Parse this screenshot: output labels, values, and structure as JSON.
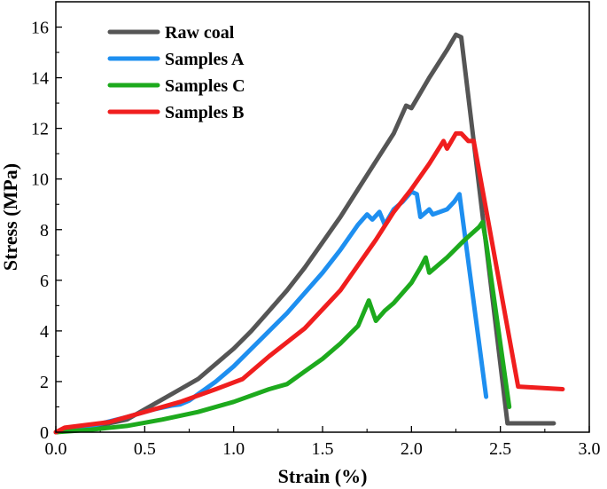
{
  "chart_data": {
    "type": "line",
    "title": "",
    "xlabel": "Strain (%)",
    "ylabel": "Stress (MPa)",
    "xlim": [
      0,
      3.0
    ],
    "ylim": [
      0,
      17
    ],
    "xticks": [
      "0.0",
      "0.5",
      "1.0",
      "1.5",
      "2.0",
      "2.5",
      "3.0"
    ],
    "yticks": [
      "0",
      "2",
      "4",
      "6",
      "8",
      "10",
      "12",
      "14",
      "16"
    ],
    "legend_position": "top-left",
    "series": [
      {
        "name": "Raw coal",
        "color": "#555555",
        "points": [
          [
            0,
            0
          ],
          [
            0.2,
            0.2
          ],
          [
            0.4,
            0.5
          ],
          [
            0.5,
            0.9
          ],
          [
            0.6,
            1.3
          ],
          [
            0.7,
            1.7
          ],
          [
            0.8,
            2.1
          ],
          [
            0.9,
            2.7
          ],
          [
            1.0,
            3.3
          ],
          [
            1.1,
            4.0
          ],
          [
            1.2,
            4.8
          ],
          [
            1.3,
            5.6
          ],
          [
            1.4,
            6.5
          ],
          [
            1.5,
            7.5
          ],
          [
            1.6,
            8.5
          ],
          [
            1.7,
            9.6
          ],
          [
            1.8,
            10.7
          ],
          [
            1.9,
            11.8
          ],
          [
            1.97,
            12.9
          ],
          [
            2.0,
            12.8
          ],
          [
            2.1,
            14.0
          ],
          [
            2.2,
            15.1
          ],
          [
            2.25,
            15.7
          ],
          [
            2.28,
            15.6
          ],
          [
            2.54,
            0.35
          ],
          [
            2.8,
            0.35
          ]
        ]
      },
      {
        "name": "Samples A",
        "color": "#1E8FF0",
        "points": [
          [
            0,
            0
          ],
          [
            0.2,
            0.25
          ],
          [
            0.4,
            0.6
          ],
          [
            0.55,
            0.9
          ],
          [
            0.65,
            1.05
          ],
          [
            0.7,
            1.1
          ],
          [
            0.75,
            1.25
          ],
          [
            0.9,
            2.0
          ],
          [
            1.0,
            2.6
          ],
          [
            1.1,
            3.3
          ],
          [
            1.2,
            4.0
          ],
          [
            1.3,
            4.7
          ],
          [
            1.4,
            5.5
          ],
          [
            1.5,
            6.3
          ],
          [
            1.6,
            7.2
          ],
          [
            1.7,
            8.2
          ],
          [
            1.75,
            8.6
          ],
          [
            1.78,
            8.4
          ],
          [
            1.82,
            8.7
          ],
          [
            1.85,
            8.2
          ],
          [
            1.9,
            8.8
          ],
          [
            1.95,
            9.1
          ],
          [
            2.0,
            9.5
          ],
          [
            2.03,
            9.4
          ],
          [
            2.05,
            8.5
          ],
          [
            2.1,
            8.8
          ],
          [
            2.12,
            8.6
          ],
          [
            2.2,
            8.8
          ],
          [
            2.24,
            9.1
          ],
          [
            2.27,
            9.4
          ],
          [
            2.42,
            1.4
          ]
        ]
      },
      {
        "name": "Samples C",
        "color": "#1DAA1D",
        "points": [
          [
            0,
            0
          ],
          [
            0.2,
            0.1
          ],
          [
            0.4,
            0.25
          ],
          [
            0.6,
            0.5
          ],
          [
            0.8,
            0.8
          ],
          [
            1.0,
            1.2
          ],
          [
            1.2,
            1.7
          ],
          [
            1.3,
            1.9
          ],
          [
            1.4,
            2.4
          ],
          [
            1.5,
            2.9
          ],
          [
            1.6,
            3.5
          ],
          [
            1.7,
            4.2
          ],
          [
            1.76,
            5.2
          ],
          [
            1.8,
            4.4
          ],
          [
            1.85,
            4.8
          ],
          [
            1.9,
            5.1
          ],
          [
            2.0,
            5.9
          ],
          [
            2.05,
            6.5
          ],
          [
            2.08,
            6.9
          ],
          [
            2.1,
            6.3
          ],
          [
            2.2,
            6.9
          ],
          [
            2.3,
            7.6
          ],
          [
            2.38,
            8.1
          ],
          [
            2.4,
            8.3
          ],
          [
            2.42,
            7.5
          ],
          [
            2.55,
            1.0
          ]
        ]
      },
      {
        "name": "Samples B",
        "color": "#F01E1E",
        "points": [
          [
            0,
            0
          ],
          [
            0.05,
            0.18
          ],
          [
            0.3,
            0.4
          ],
          [
            0.5,
            0.8
          ],
          [
            0.7,
            1.2
          ],
          [
            0.9,
            1.7
          ],
          [
            1.05,
            2.1
          ],
          [
            1.2,
            3.0
          ],
          [
            1.4,
            4.1
          ],
          [
            1.6,
            5.6
          ],
          [
            1.8,
            7.6
          ],
          [
            1.9,
            8.7
          ],
          [
            2.0,
            9.6
          ],
          [
            2.1,
            10.6
          ],
          [
            2.18,
            11.5
          ],
          [
            2.2,
            11.2
          ],
          [
            2.25,
            11.8
          ],
          [
            2.28,
            11.8
          ],
          [
            2.32,
            11.5
          ],
          [
            2.35,
            11.5
          ],
          [
            2.6,
            1.8
          ],
          [
            2.85,
            1.7
          ]
        ]
      }
    ]
  }
}
